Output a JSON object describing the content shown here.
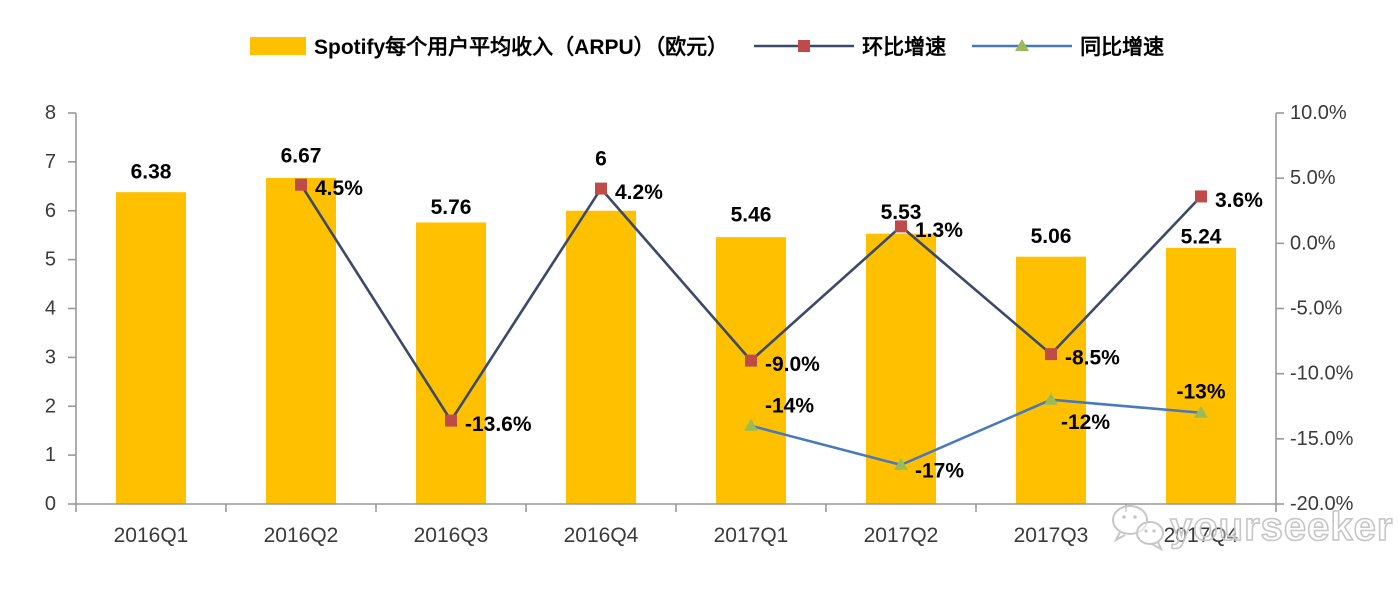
{
  "legend": {
    "bars": "Spotify每个用户平均收入（ARPU）（欧元）",
    "qoq": "环比增速",
    "yoy": "同比增速"
  },
  "colors": {
    "bar": "#FFC000",
    "qoq_line": "#3A4A68",
    "qoq_marker": "#BE4B48",
    "yoy_line": "#4878BE",
    "yoy_marker": "#9BBB59",
    "axis": "#999999",
    "tick_text": "#3A3A3A",
    "label_text": "#000000",
    "watermark": "#C6C6C6"
  },
  "watermark": {
    "text": "yourseeker",
    "icon": "wechat-icon"
  },
  "chart_data": {
    "type": "bar+line combo",
    "title": "Spotify每个用户平均收入（ARPU）（欧元）",
    "grid": false,
    "legend_position": "top",
    "categories": [
      "2016Q1",
      "2016Q2",
      "2016Q3",
      "2016Q4",
      "2017Q1",
      "2017Q2",
      "2017Q3",
      "2017Q4"
    ],
    "series": [
      {
        "name": "Spotify每个用户平均收入（ARPU）（欧元）",
        "type": "bar",
        "axis": "left",
        "values": [
          6.38,
          6.67,
          5.76,
          6,
          5.46,
          5.53,
          5.06,
          5.24
        ],
        "labels": [
          "6.38",
          "6.67",
          "5.76",
          "6",
          "5.46",
          "5.53",
          "5.06",
          "5.24"
        ]
      },
      {
        "name": "环比增速",
        "type": "line",
        "marker": "square",
        "axis": "right",
        "values": [
          null,
          4.5,
          -13.6,
          4.2,
          -9.0,
          1.3,
          -8.5,
          3.6
        ],
        "labels": [
          null,
          "4.5%",
          "-13.6%",
          "4.2%",
          "-9.0%",
          "1.3%",
          "-8.5%",
          "3.6%"
        ]
      },
      {
        "name": "同比增速",
        "type": "line",
        "marker": "triangle",
        "axis": "right",
        "values": [
          null,
          null,
          null,
          null,
          -14,
          -17,
          -12,
          -13
        ],
        "labels": [
          null,
          null,
          null,
          null,
          "-14%",
          "-17%",
          "-12%",
          "-13%"
        ]
      }
    ],
    "left_axis": {
      "min": 0,
      "max": 8,
      "step": 1,
      "ticks": [
        "0",
        "1",
        "2",
        "3",
        "4",
        "5",
        "6",
        "7",
        "8"
      ]
    },
    "right_axis": {
      "min": -20,
      "max": 10,
      "step": 5,
      "ticks": [
        "10.0%",
        "5.0%",
        "0.0%",
        "-5.0%",
        "-10.0%",
        "-15.0%",
        "-20.0%"
      ],
      "tick_values": [
        10,
        5,
        0,
        -5,
        -10,
        -15,
        -20
      ]
    }
  }
}
